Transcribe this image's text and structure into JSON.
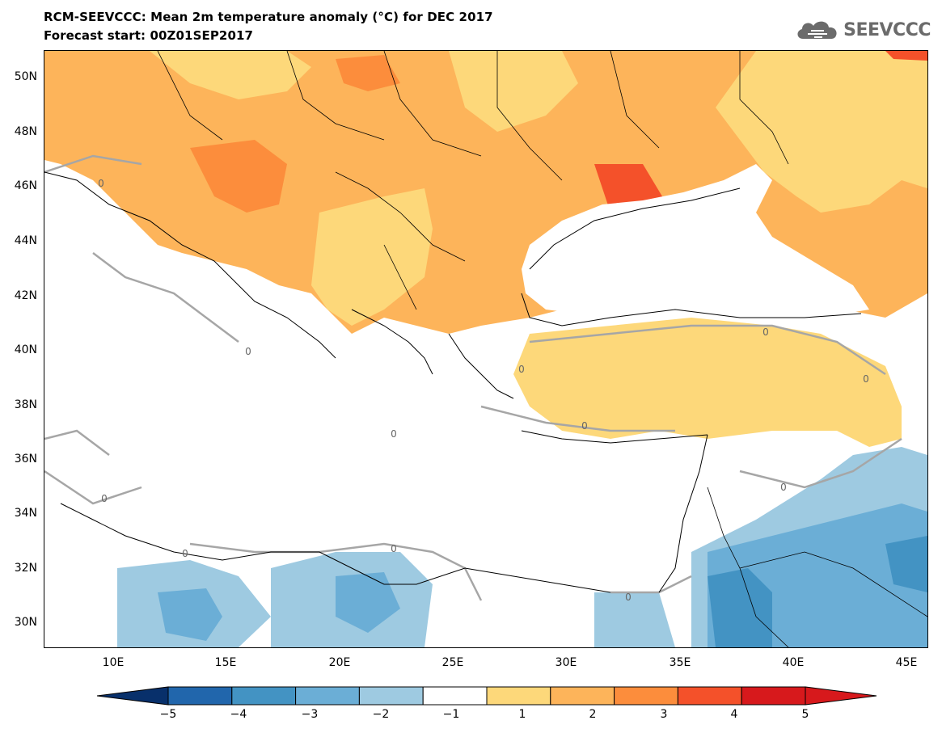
{
  "title": {
    "line1": "RCM-SEEVCCC: Mean 2m temperature anomaly (°C) for DEC 2017",
    "line2": "Forecast start: 00Z01SEP2017"
  },
  "logo": {
    "text": "SEEVCCC",
    "icon": "cloud-icon"
  },
  "map": {
    "lat_labels": [
      "50N",
      "48N",
      "46N",
      "44N",
      "42N",
      "40N",
      "38N",
      "36N",
      "34N",
      "32N",
      "30N"
    ],
    "lon_labels": [
      "10E",
      "15E",
      "20E",
      "25E",
      "30E",
      "35E",
      "40E",
      "45E"
    ],
    "contour_labels": [
      "0",
      "0",
      "0",
      "0",
      "0",
      "0",
      "0",
      "0",
      "0",
      "0",
      "0",
      "0"
    ]
  },
  "colorbar": {
    "labels": [
      "−5",
      "−4",
      "−3",
      "−2",
      "−1",
      "1",
      "2",
      "3",
      "4",
      "5"
    ],
    "colors": [
      "#2166ac",
      "#4393c3",
      "#6baed6",
      "#9ecae1",
      "#ffffff",
      "#fdd87a",
      "#fdb45a",
      "#fc8d3c",
      "#f4512a",
      "#d7191c"
    ],
    "under_color": "#08306b",
    "over_color": "#d7191c"
  }
}
